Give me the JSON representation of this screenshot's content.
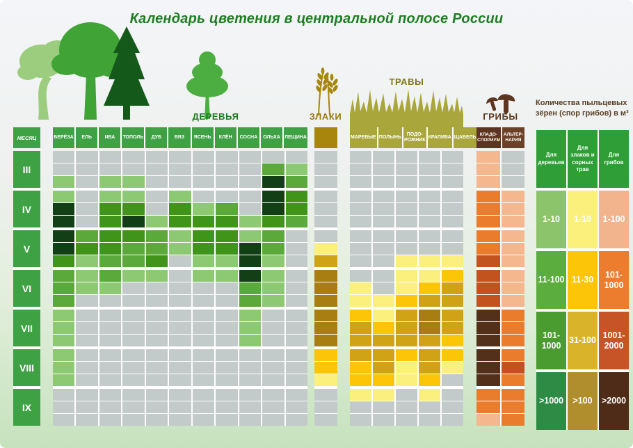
{
  "title": "Календарь цветения в центральной полосе России",
  "sections": {
    "trees": "ДЕРЕВЬЯ",
    "grain": "ЗЛАКИ",
    "herbs": "ТРАВЫ",
    "fungi": "ГРИБЫ"
  },
  "month_header": "МЕСЯЦ",
  "fungi_header_colors": [
    "#5c3420",
    "#6b4228"
  ],
  "legend": {
    "title_line1": "Количества пыльцевых",
    "title_line2": "зёрен (спор грибов) в м³",
    "header_color": "#2f9e36",
    "columns": [
      "Для деревьев",
      "Для злаков и сорных трав",
      "Для грибов"
    ],
    "rows": [
      {
        "labels": [
          "1-10",
          "1-10",
          "1-100"
        ],
        "colors": [
          "#8cc46c",
          "#fcf07c",
          "#f2b48c"
        ]
      },
      {
        "labels": [
          "11-100",
          "11-30",
          "101-1000"
        ],
        "colors": [
          "#5bad3d",
          "#fcc508",
          "#ec7d2f"
        ]
      },
      {
        "labels": [
          "101-1000",
          "31-100",
          "1001-2000"
        ],
        "colors": [
          "#4a9c31",
          "#d9b42a",
          "#c65426"
        ]
      },
      {
        "labels": [
          ">1000",
          ">100",
          ">2000"
        ],
        "colors": [
          "#2e8b45",
          "#b08e2e",
          "#4e2c17"
        ]
      }
    ]
  },
  "palette": {
    "gray": "#c2cbc9",
    "trees": [
      "#c2cbc9",
      "#8dc873",
      "#5aa93a",
      "#3f9419",
      "#123f16"
    ],
    "grass": [
      "#c2cbc9",
      "#fbf07d",
      "#fcc508",
      "#d0a317",
      "#a87e13"
    ],
    "fungi": [
      "#c2cbc9",
      "#f5b78e",
      "#ea7d2d",
      "#c2531e",
      "#52301a"
    ]
  },
  "chart_data": {
    "type": "heatmap",
    "title": "Календарь цветения в центральной полосе России",
    "months": [
      "III",
      "IV",
      "V",
      "VI",
      "VII",
      "VIII",
      "IX"
    ],
    "subrows_per_month": 3,
    "level_meaning": {
      "trees": {
        "0": "нет",
        "1": "1-10",
        "2": "11-100",
        "3": "101-1000",
        "4": ">1000"
      },
      "grass": {
        "0": "нет",
        "1": "1-10",
        "2": "11-30",
        "3": "31-100",
        "4": ">100"
      },
      "fungi": {
        "0": "нет",
        "1": "1-100",
        "2": "101-1000",
        "3": "1001-2000",
        "4": ">2000"
      }
    },
    "series": {
      "trees": {
        "columns": [
          "БЕРЁЗА",
          "ЕЛЬ",
          "ИВА",
          "ТОПОЛЬ",
          "ДУБ",
          "ВЯЗ",
          "ЯСЕНЬ",
          "КЛЁН",
          "СОСНА",
          "ОЛЬХА",
          "ЛЕЩИНА"
        ],
        "matrix": [
          [
            0,
            0,
            0,
            0,
            0,
            0,
            0,
            0,
            0,
            0,
            0
          ],
          [
            0,
            0,
            0,
            0,
            0,
            0,
            0,
            0,
            0,
            2,
            1
          ],
          [
            1,
            0,
            1,
            1,
            0,
            0,
            0,
            0,
            0,
            4,
            2
          ],
          [
            1,
            0,
            1,
            1,
            0,
            1,
            0,
            0,
            0,
            4,
            3
          ],
          [
            4,
            0,
            3,
            3,
            0,
            3,
            1,
            2,
            0,
            4,
            3
          ],
          [
            4,
            0,
            3,
            4,
            1,
            3,
            3,
            3,
            1,
            3,
            2
          ],
          [
            4,
            2,
            3,
            3,
            2,
            1,
            3,
            3,
            1,
            2,
            0
          ],
          [
            4,
            3,
            3,
            2,
            2,
            1,
            3,
            3,
            4,
            2,
            0
          ],
          [
            3,
            1,
            2,
            2,
            3,
            0,
            1,
            1,
            4,
            1,
            0
          ],
          [
            2,
            1,
            2,
            1,
            1,
            0,
            1,
            1,
            4,
            1,
            0
          ],
          [
            2,
            1,
            1,
            0,
            0,
            0,
            0,
            0,
            2,
            1,
            0
          ],
          [
            2,
            0,
            0,
            0,
            0,
            0,
            0,
            0,
            2,
            1,
            0
          ],
          [
            1,
            0,
            0,
            0,
            0,
            0,
            0,
            0,
            1,
            0,
            0
          ],
          [
            1,
            0,
            0,
            0,
            0,
            0,
            0,
            0,
            1,
            0,
            0
          ],
          [
            1,
            0,
            0,
            0,
            0,
            0,
            0,
            0,
            1,
            0,
            0
          ],
          [
            1,
            0,
            0,
            0,
            0,
            0,
            0,
            0,
            0,
            0,
            0
          ],
          [
            1,
            0,
            0,
            0,
            0,
            0,
            0,
            0,
            0,
            0,
            0
          ],
          [
            1,
            0,
            0,
            0,
            0,
            0,
            0,
            0,
            0,
            0,
            0
          ],
          [
            0,
            0,
            0,
            0,
            0,
            0,
            0,
            0,
            0,
            0,
            0
          ],
          [
            0,
            0,
            0,
            0,
            0,
            0,
            0,
            0,
            0,
            0,
            0
          ],
          [
            0,
            0,
            0,
            0,
            0,
            0,
            0,
            0,
            0,
            0,
            0
          ]
        ]
      },
      "grain": {
        "column": "ЗЛАКИ",
        "values": [
          0,
          0,
          0,
          0,
          0,
          0,
          0,
          1,
          3,
          4,
          4,
          4,
          4,
          4,
          4,
          2,
          2,
          1,
          0,
          0,
          0
        ]
      },
      "herbs": {
        "columns": [
          "МАРЕВЫЕ",
          "ПОЛЫНЬ",
          "ПОДО-РОЖНИК",
          "КРАПИВА",
          "ЩАВЕЛЬ"
        ],
        "matrix": [
          [
            0,
            0,
            0,
            0,
            0
          ],
          [
            0,
            0,
            0,
            0,
            0
          ],
          [
            0,
            0,
            0,
            0,
            0
          ],
          [
            0,
            0,
            0,
            0,
            0
          ],
          [
            0,
            0,
            0,
            0,
            0
          ],
          [
            0,
            0,
            0,
            0,
            0
          ],
          [
            0,
            0,
            0,
            0,
            0
          ],
          [
            0,
            0,
            0,
            0,
            0
          ],
          [
            0,
            0,
            1,
            1,
            1
          ],
          [
            0,
            0,
            1,
            1,
            2
          ],
          [
            1,
            0,
            1,
            2,
            3
          ],
          [
            1,
            1,
            2,
            3,
            3
          ],
          [
            2,
            1,
            3,
            4,
            3
          ],
          [
            3,
            2,
            3,
            4,
            3
          ],
          [
            3,
            3,
            3,
            3,
            2
          ],
          [
            3,
            3,
            2,
            3,
            2
          ],
          [
            2,
            3,
            1,
            3,
            1
          ],
          [
            2,
            2,
            1,
            2,
            0
          ],
          [
            1,
            1,
            0,
            1,
            0
          ],
          [
            0,
            0,
            0,
            0,
            0
          ],
          [
            0,
            0,
            0,
            0,
            0
          ]
        ]
      },
      "fungi": {
        "columns": [
          "КЛАДО-СПОРИУМ",
          "АЛЬТЕР-НАРИЯ"
        ],
        "matrix": [
          [
            1,
            0
          ],
          [
            1,
            0
          ],
          [
            1,
            0
          ],
          [
            2,
            1
          ],
          [
            2,
            1
          ],
          [
            2,
            1
          ],
          [
            2,
            1
          ],
          [
            2,
            1
          ],
          [
            3,
            1
          ],
          [
            3,
            1
          ],
          [
            3,
            1
          ],
          [
            3,
            1
          ],
          [
            4,
            2
          ],
          [
            4,
            2
          ],
          [
            4,
            2
          ],
          [
            4,
            2
          ],
          [
            4,
            3
          ],
          [
            4,
            2
          ],
          [
            2,
            2
          ],
          [
            2,
            2
          ],
          [
            1,
            2
          ]
        ]
      }
    }
  }
}
